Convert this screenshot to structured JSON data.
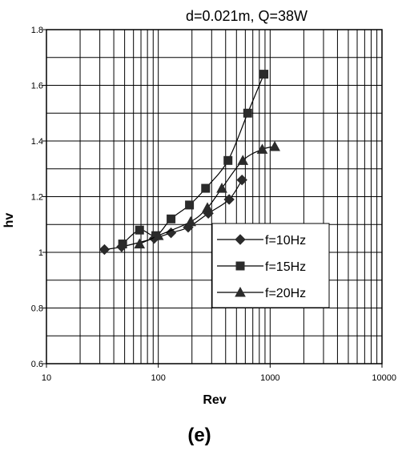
{
  "chart_data": {
    "type": "line",
    "title": "d=0.021m, Q=38W",
    "xlabel": "Rev",
    "ylabel": "hv",
    "panel_label": "(e)",
    "x_scale": "log",
    "xlim": [
      10,
      10000
    ],
    "ylim": [
      0.6,
      1.8
    ],
    "x_ticks": [
      10,
      100,
      1000,
      10000
    ],
    "x_tick_labels": [
      "10",
      "100",
      "1000",
      "10000"
    ],
    "y_ticks": [
      0.6,
      0.8,
      1,
      1.2,
      1.4,
      1.6,
      1.8
    ],
    "y_tick_labels": [
      "0.6",
      "0.8",
      "1",
      "1.2",
      "1.4",
      "1.6",
      "1.8"
    ],
    "grid": true,
    "legend_position": "bottom-right",
    "series": [
      {
        "name": "f=10Hz",
        "marker": "diamond",
        "points": [
          {
            "x": 33,
            "y": 1.01
          },
          {
            "x": 47,
            "y": 1.02
          },
          {
            "x": 92,
            "y": 1.05
          },
          {
            "x": 130,
            "y": 1.07
          },
          {
            "x": 185,
            "y": 1.09
          },
          {
            "x": 280,
            "y": 1.14
          },
          {
            "x": 430,
            "y": 1.19
          },
          {
            "x": 560,
            "y": 1.26
          }
        ]
      },
      {
        "name": "f=15Hz",
        "marker": "square",
        "points": [
          {
            "x": 48,
            "y": 1.03
          },
          {
            "x": 68,
            "y": 1.08
          },
          {
            "x": 95,
            "y": 1.06
          },
          {
            "x": 130,
            "y": 1.12
          },
          {
            "x": 190,
            "y": 1.17
          },
          {
            "x": 265,
            "y": 1.23
          },
          {
            "x": 420,
            "y": 1.33
          },
          {
            "x": 630,
            "y": 1.5
          },
          {
            "x": 880,
            "y": 1.64
          }
        ]
      },
      {
        "name": "f=20Hz",
        "marker": "triangle",
        "points": [
          {
            "x": 68,
            "y": 1.03
          },
          {
            "x": 100,
            "y": 1.06
          },
          {
            "x": 195,
            "y": 1.11
          },
          {
            "x": 275,
            "y": 1.16
          },
          {
            "x": 370,
            "y": 1.23
          },
          {
            "x": 570,
            "y": 1.33
          },
          {
            "x": 850,
            "y": 1.37
          },
          {
            "x": 1100,
            "y": 1.38
          }
        ]
      }
    ]
  }
}
